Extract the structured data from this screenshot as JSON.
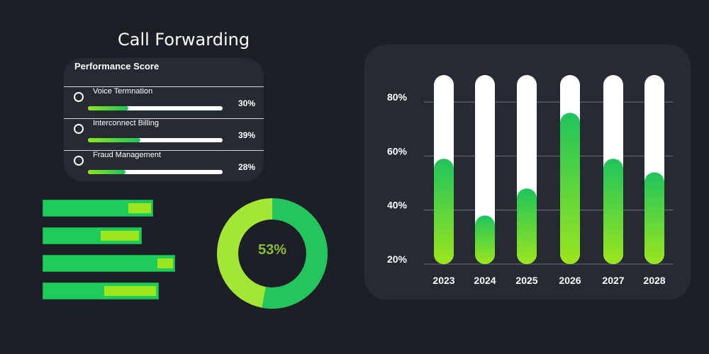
{
  "header": {
    "title": "Call Forwarding"
  },
  "performance": {
    "title": "Performance Score",
    "items": [
      {
        "label": "Voice Termnation",
        "value": 30,
        "pct": "30%"
      },
      {
        "label": "Interconnect Billing",
        "value": 39,
        "pct": "39%"
      },
      {
        "label": "Fraud Management",
        "value": 28,
        "pct": "28%"
      }
    ]
  },
  "hbars": {
    "items": [
      {
        "inner_start": 0.78,
        "inner_end": 0.99
      },
      {
        "inner_start": 0.59,
        "inner_end": 0.98
      },
      {
        "inner_start": 0.87,
        "inner_end": 0.99
      },
      {
        "inner_start": 0.53,
        "inner_end": 0.98
      }
    ]
  },
  "donut": {
    "label": "53%",
    "value": 53,
    "colors": {
      "main": "#22c55e",
      "rest": "#a3e635"
    }
  },
  "colors": {
    "bar_top": "#1fc45c",
    "bar_bottom": "#9be61d",
    "bar_bg": "#ffffff",
    "grid": "#6b7280"
  },
  "chart_data": {
    "type": "bar",
    "categories": [
      "2023",
      "2024",
      "2025",
      "2026",
      "2027",
      "2028"
    ],
    "values": [
      59,
      38,
      48,
      76,
      59,
      54
    ],
    "yticks": [
      "20%",
      "40%",
      "60%",
      "80%"
    ],
    "ytick_values": [
      20,
      40,
      60,
      80
    ],
    "ylim": [
      20,
      90
    ],
    "grid": true
  }
}
